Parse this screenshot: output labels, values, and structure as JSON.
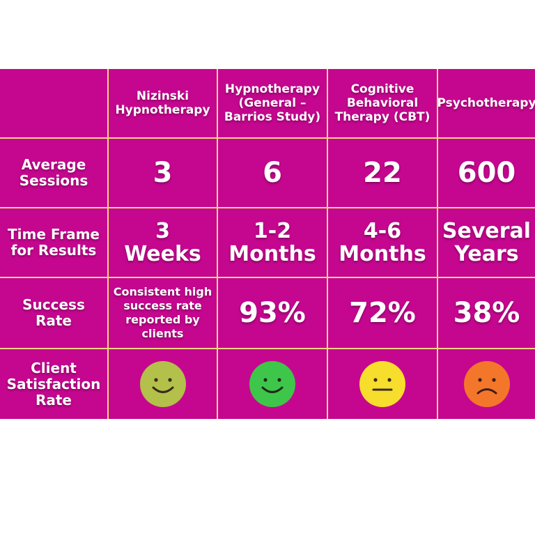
{
  "columns": [
    "",
    "Nizinski Hypnotherapy",
    "Hypnotherapy (General – Barrios Study)",
    "Cognitive Behavioral Therapy (CBT)",
    "Psychotherapy"
  ],
  "column_lines": [
    [
      "Nizinski",
      "Hypnotherapy"
    ],
    [
      "Hypnotherapy",
      "(General –",
      "Barrios Study)"
    ],
    [
      "Cognitive",
      "Behavioral",
      "Therapy (CBT)"
    ],
    [
      "Psychotherapy"
    ]
  ],
  "rows": [
    {
      "label": [
        "Average",
        "Sessions"
      ],
      "values": [
        [
          "3"
        ],
        [
          "6"
        ],
        [
          "22"
        ],
        [
          "600"
        ]
      ]
    },
    {
      "label": [
        "Time Frame",
        "for Results"
      ],
      "values": [
        [
          "3",
          "Weeks"
        ],
        [
          "1-2",
          "Months"
        ],
        [
          "4-6",
          "Months"
        ],
        [
          "Several",
          "Years"
        ]
      ]
    },
    {
      "label": [
        "Success",
        "Rate"
      ],
      "values": [
        [
          "Consistent high",
          "success rate",
          "reported by",
          "clients"
        ],
        [
          "93%"
        ],
        [
          "72%"
        ],
        [
          "38%"
        ]
      ]
    },
    {
      "label": [
        "Client",
        "Satisfaction",
        "Rate"
      ],
      "faces": [
        {
          "icon": "smiley-face-icon",
          "expression": "smile",
          "color": "#b3c04a"
        },
        {
          "icon": "smiley-face-icon",
          "expression": "smile",
          "color": "#3ec64a"
        },
        {
          "icon": "neutral-face-icon",
          "expression": "neutral",
          "color": "#f7dd2c"
        },
        {
          "icon": "frown-face-icon",
          "expression": "frown",
          "color": "#f4762a"
        }
      ]
    }
  ],
  "colors": {
    "cell": "#c5078f",
    "grid_line": "#f4d67e",
    "text": "#ffffff"
  }
}
